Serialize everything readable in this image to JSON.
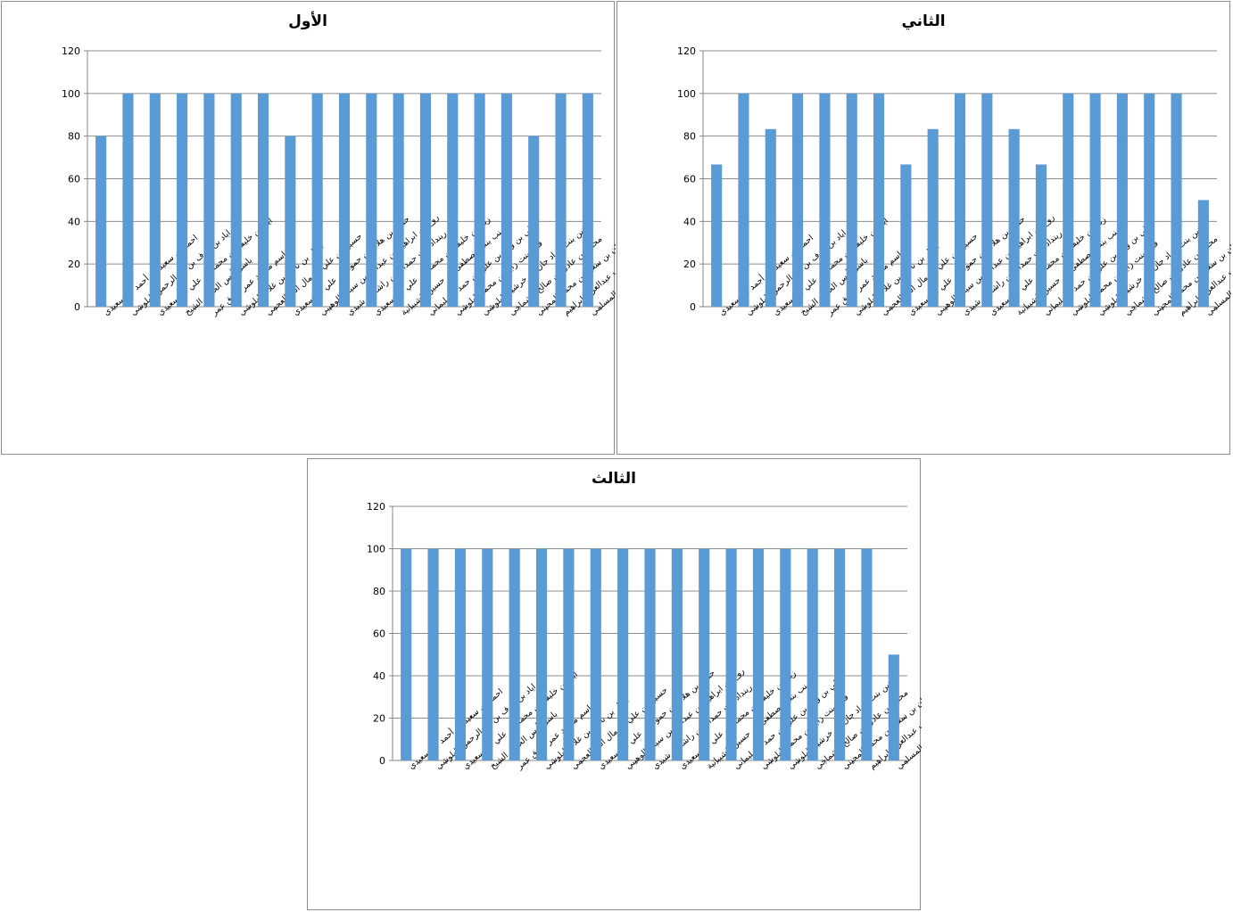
{
  "chart_data": [
    {
      "type": "bar",
      "title": "الأول",
      "ylim": [
        0,
        120
      ],
      "yticks": [
        0,
        20,
        40,
        60,
        80,
        100,
        120
      ],
      "grid": true,
      "bar_color": "#5b9bd5",
      "categories": [
        "احمد بن سعيد بن أحمد البوسعيدي",
        "اياد بن عوف بن عبدالرحمن البلوشي",
        "اياد بن خليفة بن محمد بن علي البوسعيدي",
        "باسل أنس الخضر الشيخ",
        "باسم مسعد عمر صدق عمر",
        "بشار بن ناظر بن غلام البلوشي",
        "حسين بن علي بن مال الله العجمي",
        "حمود بن هلال بن حمود بن علي البوسعيدي",
        "روح بن ابراهيم بن عبدالله بن سيف الوهيبي",
        "رينداد بنت حمدان بن راشد الرشيدي",
        "زياد بن خليفة بن محمد بن علي البوسعيدي",
        "زينب بنت مصطفى بن حسين الشيبانية",
        "علي بن وليد بن علي بن حمد السليماني",
        "فرح بنت زايد بن محمد البلوشي",
        "ماهين بنت مراد جان بن خرشيد البلوشي",
        "محمد بن عادل بن صالح الشماخي",
        "ميران بن سعيد بن محمد المجيني",
        "هنا احمد غريب عبدالعزيز ابراهيم",
        "عمار بن حميد بن سعيد المسلمي"
      ],
      "values": [
        80,
        100,
        100,
        100,
        100,
        100,
        100,
        80,
        100,
        100,
        100,
        100,
        100,
        100,
        100,
        100,
        80,
        100,
        100
      ]
    },
    {
      "type": "bar",
      "title": "الثاني",
      "ylim": [
        0,
        120
      ],
      "yticks": [
        0,
        20,
        40,
        60,
        80,
        100,
        120
      ],
      "grid": true,
      "bar_color": "#5b9bd5",
      "categories": [
        "احمد بن سعيد بن أحمد البوسعيدي",
        "اياد بن عوف بن عبدالرحمن البلوشي",
        "اياد بن خليفة بن محمد بن علي البوسعيدي",
        "باسل أنس الخضر الشيخ",
        "باسم مسعد عمر صدق عمر",
        "بشار بن ناظر بن غلام البلوشي",
        "حسين بن علي بن مال الله العجمي",
        "حمود بن هلال بن حمود بن علي البوسعيدي",
        "روح بن ابراهيم بن عبدالله بن سيف الوهيبي",
        "رينداد بنت حمدان بن راشد الرشيدي",
        "زياد بن خليفة بن محمد بن علي البوسعيدي",
        "زينب بنت مصطفى بن حسين الشيبانية",
        "علي بن وليد بن علي بن حمد السليماني",
        "فرح بنت زايد بن محمد البلوشي",
        "ماهين بنت مراد جان بن خرشيد البلوشي",
        "محمد بن عادل بن صالح الشماخي",
        "ميران بن سعيد بن محمد المجيني",
        "هنا احمد غريب عبدالعزيز ابراهيم",
        "عمار بن حميد بن سعيد المسلمي"
      ],
      "values": [
        66.7,
        100,
        83.3,
        100,
        100,
        100,
        100,
        66.7,
        83.3,
        100,
        100,
        83.3,
        66.7,
        100,
        100,
        100,
        100,
        100,
        50
      ]
    },
    {
      "type": "bar",
      "title": "الثالث",
      "ylim": [
        0,
        120
      ],
      "yticks": [
        0,
        20,
        40,
        60,
        80,
        100,
        120
      ],
      "grid": true,
      "bar_color": "#5b9bd5",
      "categories": [
        "احمد بن سعيد بن أحمد البوسعيدي",
        "اياد بن عوف بن عبدالرحمن البلوشي",
        "اياد بن خليفة بن محمد بن علي البوسعيدي",
        "باسل أنس الخضر الشيخ",
        "باسم مسعد عمر صدق عمر",
        "بشار بن ناظر بن غلام البلوشي",
        "حسين بن علي بن مال الله العجمي",
        "حمود بن هلال بن حمود بن علي البوسعيدي",
        "روح بن ابراهيم بن عبدالله بن سيف الوهيبي",
        "رينداد بنت حمدان بن راشد الرشيدي",
        "زياد بن خليفة بن محمد بن علي البوسعيدي",
        "زينب بنت مصطفى بن حسين الشيبانية",
        "علي بن وليد بن علي بن حمد السليماني",
        "فرح بنت زايد بن محمد البلوشي",
        "ماهين بنت مراد جان بن خرشيد البلوشي",
        "محمد بن عادل بن صالح الشماخي",
        "ميران بن سعيد بن محمد المجيني",
        "هنا احمد غريب عبدالعزيز ابراهيم",
        "عمار بن حميد بن سعيد المسلمي"
      ],
      "values": [
        100,
        100,
        100,
        100,
        100,
        100,
        100,
        100,
        100,
        100,
        100,
        100,
        100,
        100,
        100,
        100,
        100,
        100,
        50
      ]
    }
  ]
}
